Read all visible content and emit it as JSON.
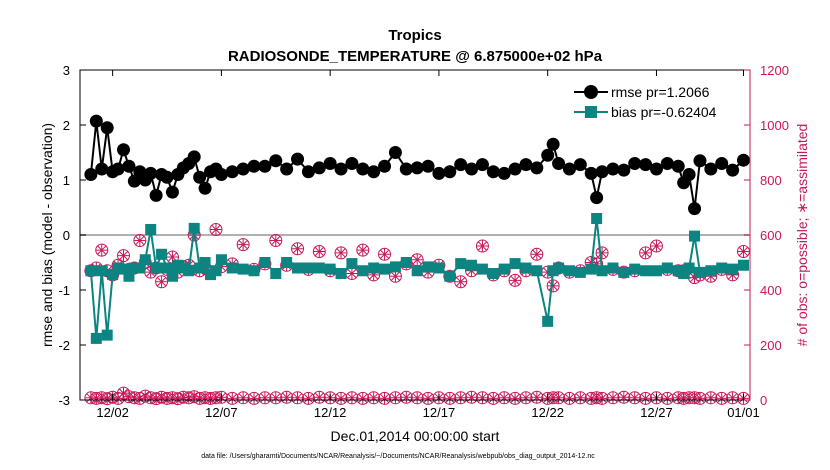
{
  "chart_data": {
    "type": "line",
    "title": "Tropics",
    "subtitle": "RADIOSONDE_TEMPERATURE @ 6.875000e+02 hPa",
    "xlabel": "Dec.01,2014 00:00:00 start",
    "ylabel": "rmse and bias (model - observation)",
    "ylabel_right": "# of obs: o=possible; ∗=assimilated",
    "xlim": [
      0.5,
      31.3
    ],
    "ylim": [
      -3,
      3
    ],
    "ylim_right": [
      0,
      1200
    ],
    "x_ticks": [
      2,
      7,
      12,
      17,
      22,
      27,
      31
    ],
    "x_tick_labels": [
      "12/02",
      "12/07",
      "12/12",
      "12/17",
      "12/22",
      "12/27",
      "01/01"
    ],
    "y_ticks": [
      "-3",
      "-2",
      "-1",
      "0",
      "1",
      "2",
      "3"
    ],
    "y_ticks_right": [
      "0",
      "200",
      "400",
      "600",
      "800",
      "1000",
      "1200"
    ],
    "zero_line": 0,
    "x": [
      1.0,
      1.25,
      1.5,
      1.75,
      2.0,
      2.25,
      2.5,
      2.75,
      3.0,
      3.25,
      3.5,
      3.75,
      4.0,
      4.25,
      4.5,
      4.75,
      5.0,
      5.25,
      5.5,
      5.75,
      6.0,
      6.25,
      6.5,
      6.75,
      7.0,
      7.5,
      8.0,
      8.5,
      9.0,
      9.5,
      10.0,
      10.5,
      11.0,
      11.5,
      12.0,
      12.5,
      13.0,
      13.5,
      14.0,
      14.5,
      15.0,
      15.5,
      16.0,
      16.5,
      17.0,
      17.5,
      18.0,
      18.5,
      19.0,
      19.5,
      20.0,
      20.5,
      21.0,
      21.5,
      22.0,
      22.25,
      22.5,
      23.0,
      23.5,
      24.0,
      24.25,
      24.5,
      25.0,
      25.5,
      26.0,
      26.5,
      27.0,
      27.5,
      28.0,
      28.25,
      28.5,
      28.75,
      29.0,
      29.5,
      30.0,
      30.5,
      31.0
    ],
    "series": [
      {
        "name": "rmse pr=1.2066",
        "color": "#000000",
        "marker": "circle",
        "values": [
          1.1,
          2.07,
          1.2,
          1.95,
          1.15,
          1.2,
          1.55,
          1.25,
          0.98,
          1.15,
          1.0,
          1.12,
          0.72,
          1.1,
          1.05,
          0.78,
          1.1,
          1.22,
          1.3,
          1.42,
          1.05,
          0.85,
          1.15,
          1.2,
          1.1,
          1.15,
          1.2,
          1.25,
          1.25,
          1.35,
          1.2,
          1.38,
          1.15,
          1.22,
          1.3,
          1.2,
          1.3,
          1.2,
          1.15,
          1.25,
          1.5,
          1.2,
          1.22,
          1.25,
          1.12,
          1.15,
          1.28,
          1.2,
          1.28,
          1.15,
          1.12,
          1.2,
          1.28,
          1.22,
          1.45,
          1.65,
          1.3,
          1.2,
          1.28,
          1.12,
          0.68,
          1.15,
          1.2,
          1.18,
          1.3,
          1.28,
          1.2,
          1.3,
          1.25,
          0.95,
          1.1,
          0.48,
          1.35,
          1.2,
          1.3,
          1.18,
          1.36
        ]
      },
      {
        "name": "bias pr=-0.62404",
        "color": "#0b8482",
        "marker": "square",
        "values": [
          -0.65,
          -1.88,
          -0.65,
          -1.82,
          -0.72,
          -0.6,
          -0.62,
          -0.75,
          -0.6,
          -0.6,
          -0.45,
          0.1,
          -0.6,
          -0.35,
          -0.6,
          -0.75,
          -0.55,
          -0.6,
          -0.65,
          0.12,
          -0.6,
          -0.5,
          -0.72,
          -0.65,
          -0.45,
          -0.6,
          -0.62,
          -0.65,
          -0.5,
          -0.7,
          -0.5,
          -0.6,
          -0.6,
          -0.6,
          -0.62,
          -0.7,
          -0.52,
          -0.65,
          -0.6,
          -0.62,
          -0.58,
          -0.5,
          -0.65,
          -0.58,
          -0.6,
          -0.75,
          -0.52,
          -0.55,
          -0.62,
          -0.7,
          -0.62,
          -0.52,
          -0.6,
          -0.65,
          -1.57,
          -0.65,
          -0.6,
          -0.65,
          -0.68,
          -0.62,
          0.3,
          -0.65,
          -0.6,
          -0.68,
          -0.62,
          -0.65,
          -0.65,
          -0.6,
          -0.65,
          -0.7,
          -0.6,
          -0.02,
          -0.68,
          -0.65,
          -0.6,
          -0.62,
          -0.55
        ]
      },
      {
        "name": "# of obs possible",
        "axis": "right",
        "color": "#c8185a",
        "marker": "circle-open",
        "values": [
          470,
          480,
          545,
          470,
          455,
          490,
          525,
          475,
          480,
          580,
          500,
          465,
          480,
          430,
          475,
          520,
          465,
          485,
          490,
          600,
          470,
          480,
          465,
          620,
          485,
          495,
          565,
          475,
          495,
          580,
          490,
          550,
          475,
          540,
          470,
          535,
          460,
          545,
          455,
          530,
          450,
          495,
          510,
          465,
          490,
          450,
          430,
          470,
          560,
          455,
          470,
          435,
          470,
          530,
          465,
          415,
          480,
          465,
          470,
          500,
          495,
          535,
          475,
          465,
          470,
          535,
          560,
          475,
          470,
          470,
          465,
          445,
          455,
          450,
          475,
          455,
          540
        ]
      },
      {
        "name": "# of obs assimilated",
        "axis": "right",
        "color": "#c8185a",
        "marker": "asterisk",
        "values": [
          470,
          480,
          545,
          470,
          455,
          490,
          525,
          475,
          480,
          580,
          500,
          465,
          480,
          430,
          475,
          520,
          465,
          485,
          490,
          600,
          470,
          480,
          465,
          620,
          485,
          495,
          565,
          475,
          495,
          580,
          490,
          550,
          475,
          540,
          470,
          535,
          460,
          545,
          455,
          530,
          450,
          495,
          510,
          465,
          490,
          450,
          430,
          470,
          560,
          455,
          470,
          435,
          470,
          530,
          465,
          415,
          480,
          465,
          470,
          500,
          495,
          535,
          475,
          465,
          470,
          535,
          560,
          475,
          470,
          470,
          465,
          445,
          455,
          450,
          475,
          455,
          540
        ]
      },
      {
        "name": "# of obs low possible",
        "axis": "right",
        "color": "#c8185a",
        "marker": "circle-open",
        "values": [
          8,
          6,
          8,
          5,
          10,
          6,
          25,
          12,
          8,
          6,
          14,
          8,
          5,
          10,
          6,
          8,
          5,
          10,
          8,
          12,
          6,
          8,
          6,
          8,
          10,
          6,
          8,
          6,
          8,
          8,
          10,
          8,
          6,
          10,
          8,
          6,
          8,
          6,
          8,
          6,
          8,
          10,
          8,
          6,
          8,
          6,
          8,
          10,
          8,
          6,
          8,
          6,
          8,
          10,
          6,
          8,
          8,
          6,
          8,
          6,
          8,
          6,
          8,
          10,
          8,
          6,
          8,
          6,
          8,
          6,
          8,
          8,
          6,
          8,
          6,
          8,
          6
        ]
      },
      {
        "name": "# of obs low assimilated",
        "axis": "right",
        "color": "#c8185a",
        "marker": "asterisk",
        "values": [
          8,
          6,
          8,
          5,
          10,
          6,
          25,
          12,
          8,
          6,
          14,
          8,
          5,
          10,
          6,
          8,
          5,
          10,
          8,
          12,
          6,
          8,
          6,
          8,
          10,
          6,
          8,
          6,
          8,
          8,
          10,
          8,
          6,
          10,
          8,
          6,
          8,
          6,
          8,
          6,
          8,
          10,
          8,
          6,
          8,
          6,
          8,
          10,
          8,
          6,
          8,
          6,
          8,
          10,
          6,
          8,
          8,
          6,
          8,
          6,
          8,
          6,
          8,
          10,
          8,
          6,
          8,
          6,
          8,
          6,
          8,
          8,
          6,
          8,
          6,
          8,
          6
        ]
      }
    ],
    "legend": [
      "rmse pr=1.2066",
      "bias pr=-0.62404"
    ],
    "legend_position": "top-right",
    "footnote": "data file: /Users/gharamti/Documents/NCAR/Reanalysis/~/Documents/NCAR/Reanalysis/webpub/obs_diag_output_2014-12.nc"
  }
}
